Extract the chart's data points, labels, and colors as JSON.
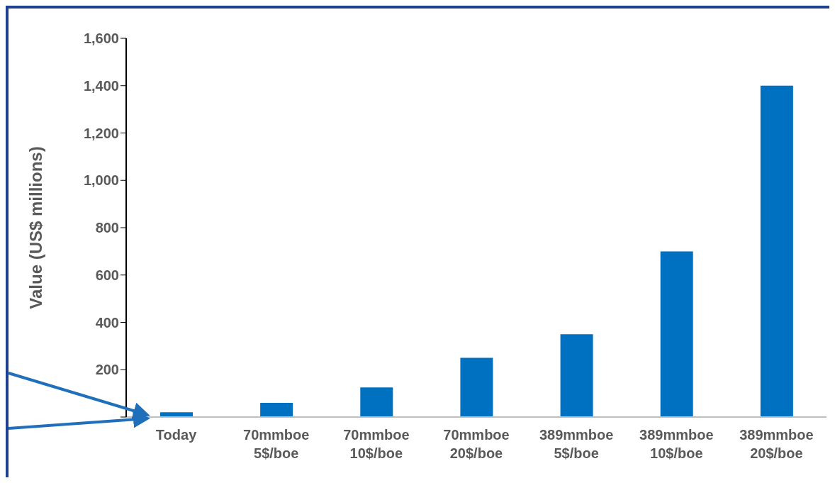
{
  "chart_data": {
    "type": "bar",
    "ylabel": "Value (US$ millions)",
    "categories": [
      "Today",
      "70mmboe\n5$/boe",
      "70mmboe\n10$/boe",
      "70mmboe\n20$/boe",
      "389mmboe\n5$/boe",
      "389mmboe\n10$/boe",
      "389mmboe\n20$/boe"
    ],
    "values": [
      20,
      60,
      125,
      250,
      350,
      700,
      1400
    ],
    "color": "#0070c0",
    "ylim": [
      0,
      1600
    ],
    "yticks": [
      {
        "value": 0,
        "label": null
      },
      {
        "value": 200,
        "label": "200"
      },
      {
        "value": 400,
        "label": "400"
      },
      {
        "value": 600,
        "label": "600"
      },
      {
        "value": 800,
        "label": "800"
      },
      {
        "value": 1000,
        "label": "1,000"
      },
      {
        "value": 1200,
        "label": "1,200"
      },
      {
        "value": 1400,
        "label": "1,400"
      },
      {
        "value": 1600,
        "label": "1,600"
      }
    ],
    "grid": false,
    "legend": false
  }
}
